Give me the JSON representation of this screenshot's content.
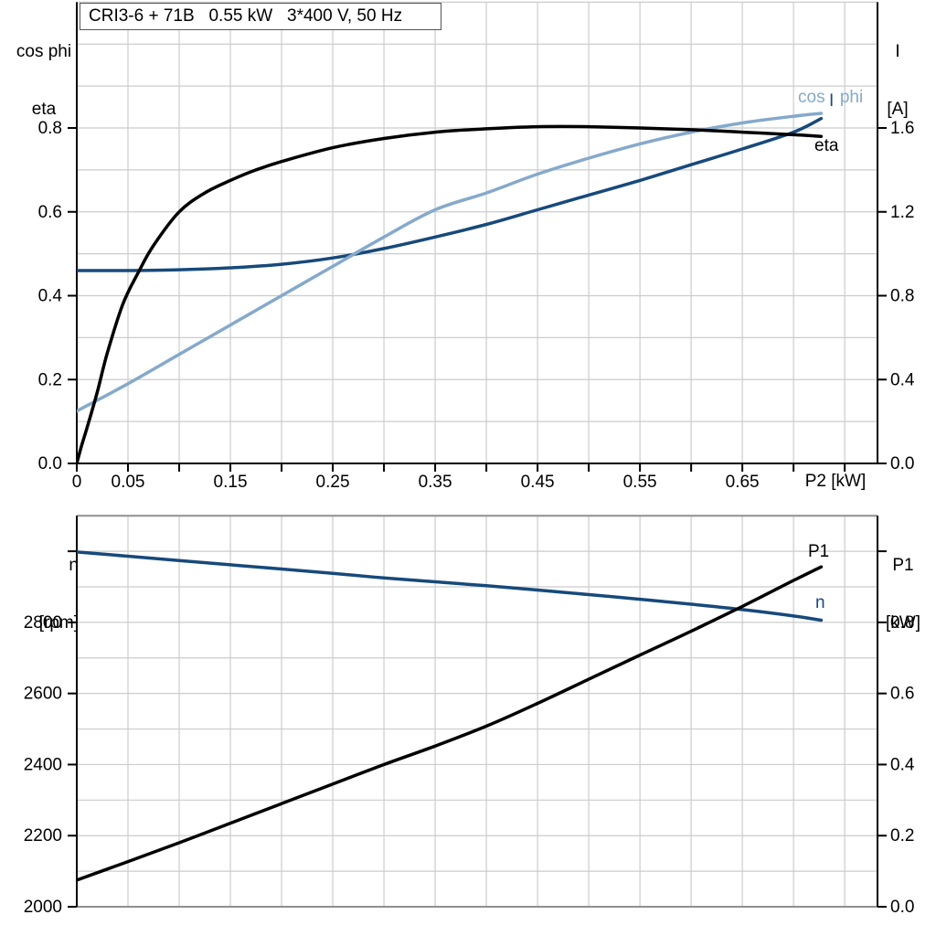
{
  "title_box": {
    "text": "CRI3-6 + 71B   0.55 kW   3*400 V, 50 Hz"
  },
  "colors": {
    "black": "#000000",
    "dark_blue": "#17497b",
    "light_blue": "#85a9cb",
    "grid": "#cccccc",
    "frame": "#8f8f8f",
    "axis": "#000000"
  },
  "chart_data": [
    {
      "id": "motor-electrical-curves",
      "type": "line",
      "title": "CRI3-6 + 71B   0.55 kW   3*400 V, 50 Hz",
      "x_axis": {
        "title": "P2 [kW]",
        "min": 0,
        "max": 0.782,
        "tick_step": 0.05,
        "grid": true,
        "labels": [
          [
            0,
            "0"
          ],
          [
            0.05,
            "0.05"
          ],
          [
            0.15,
            "0.15"
          ],
          [
            0.25,
            "0.25"
          ],
          [
            0.35,
            "0.35"
          ],
          [
            0.45,
            "0.45"
          ],
          [
            0.55,
            "0.55"
          ],
          [
            0.65,
            "0.65"
          ]
        ]
      },
      "y_left_axis": {
        "title": [
          "cos phi",
          "eta"
        ],
        "min": 0,
        "max": 1.1,
        "grid_step": 0.1,
        "labels": [
          [
            0.0,
            "0.0"
          ],
          [
            0.2,
            "0.2"
          ],
          [
            0.4,
            "0.4"
          ],
          [
            0.6,
            "0.6"
          ],
          [
            0.8,
            "0.8"
          ]
        ]
      },
      "y_right_axis": {
        "title": [
          "I",
          "[A]"
        ],
        "min": 0,
        "max": 2.2,
        "labels": [
          [
            0.0,
            "0.0"
          ],
          [
            0.4,
            "0.4"
          ],
          [
            0.8,
            "0.8"
          ],
          [
            1.2,
            "1.2"
          ],
          [
            1.6,
            "1.6"
          ]
        ]
      },
      "legend_position": "end-of-curve",
      "series": [
        {
          "name": "I",
          "label": "I",
          "axis": "right",
          "color_key": "dark_blue",
          "x": [
            0,
            0.05,
            0.1,
            0.15,
            0.2,
            0.25,
            0.3,
            0.35,
            0.4,
            0.45,
            0.5,
            0.55,
            0.6,
            0.65,
            0.7,
            0.727
          ],
          "y": [
            0.92,
            0.92,
            0.924,
            0.933,
            0.95,
            0.98,
            1.025,
            1.08,
            1.14,
            1.21,
            1.28,
            1.35,
            1.425,
            1.5,
            1.58,
            1.645
          ]
        },
        {
          "name": "cos_phi",
          "label": "cos phi",
          "axis": "left",
          "color_key": "light_blue",
          "x": [
            0,
            0.05,
            0.1,
            0.15,
            0.2,
            0.25,
            0.3,
            0.35,
            0.4,
            0.45,
            0.5,
            0.55,
            0.6,
            0.65,
            0.7,
            0.727
          ],
          "y": [
            0.125,
            0.19,
            0.26,
            0.33,
            0.4,
            0.47,
            0.54,
            0.605,
            0.645,
            0.69,
            0.728,
            0.762,
            0.79,
            0.812,
            0.828,
            0.835
          ]
        },
        {
          "name": "eta",
          "label": "eta",
          "axis": "left",
          "color_key": "black",
          "x": [
            0,
            0.005,
            0.01,
            0.02,
            0.03,
            0.045,
            0.06,
            0.075,
            0.1,
            0.125,
            0.15,
            0.175,
            0.2,
            0.25,
            0.3,
            0.35,
            0.4,
            0.45,
            0.5,
            0.55,
            0.6,
            0.65,
            0.7,
            0.727
          ],
          "y": [
            0,
            0.045,
            0.085,
            0.17,
            0.265,
            0.38,
            0.455,
            0.52,
            0.6,
            0.645,
            0.675,
            0.7,
            0.72,
            0.753,
            0.775,
            0.79,
            0.798,
            0.803,
            0.803,
            0.8,
            0.796,
            0.79,
            0.784,
            0.78
          ]
        }
      ]
    },
    {
      "id": "speed-and-input-power",
      "type": "line",
      "x_axis": {
        "title": "",
        "min": 0,
        "max": 0.782,
        "tick_step": null,
        "grid": true,
        "labels": []
      },
      "y_left_axis": {
        "title": [
          "n",
          "[rpm]"
        ],
        "min": 2000,
        "max": 3100,
        "grid_step": 100,
        "labels": [
          [
            2000,
            "2000"
          ],
          [
            2200,
            "2200"
          ],
          [
            2400,
            "2400"
          ],
          [
            2600,
            "2600"
          ],
          [
            2800,
            "2800"
          ],
          [
            3000,
            ""
          ]
        ]
      },
      "y_right_axis": {
        "title": [
          "P1",
          "[kW]"
        ],
        "min": 0,
        "max": 1.1,
        "labels": [
          [
            0.0,
            "0.0"
          ],
          [
            0.2,
            "0.2"
          ],
          [
            0.4,
            "0.4"
          ],
          [
            0.6,
            "0.6"
          ],
          [
            0.8,
            "0.8"
          ],
          [
            1.0,
            ""
          ]
        ]
      },
      "legend_position": "end-of-curve",
      "series": [
        {
          "name": "n",
          "label": "n",
          "axis": "left",
          "color_key": "dark_blue",
          "x": [
            0,
            0.05,
            0.1,
            0.15,
            0.2,
            0.25,
            0.3,
            0.35,
            0.4,
            0.45,
            0.5,
            0.55,
            0.6,
            0.65,
            0.7,
            0.727
          ],
          "y": [
            2998,
            2986,
            2974,
            2962,
            2950,
            2938,
            2925,
            2914,
            2903,
            2891,
            2878,
            2865,
            2851,
            2836,
            2818,
            2806
          ]
        },
        {
          "name": "P1",
          "label": "P1",
          "axis": "right",
          "color_key": "black",
          "x": [
            0,
            0.05,
            0.1,
            0.15,
            0.2,
            0.25,
            0.3,
            0.35,
            0.4,
            0.45,
            0.5,
            0.55,
            0.6,
            0.65,
            0.7,
            0.727
          ],
          "y": [
            0.075,
            0.127,
            0.18,
            0.235,
            0.29,
            0.345,
            0.4,
            0.452,
            0.508,
            0.572,
            0.64,
            0.708,
            0.775,
            0.845,
            0.918,
            0.956
          ]
        }
      ]
    }
  ]
}
